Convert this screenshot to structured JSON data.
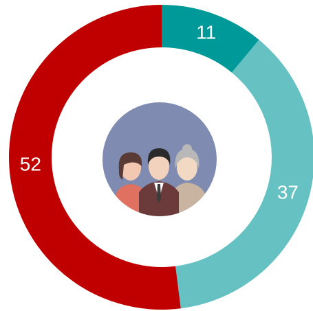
{
  "chart_data": {
    "type": "donut",
    "categories": [
      null,
      null,
      null
    ],
    "values": [
      11,
      37,
      52
    ],
    "colors": [
      "#009999",
      "#66c2c2",
      "#c00000"
    ]
  }
}
